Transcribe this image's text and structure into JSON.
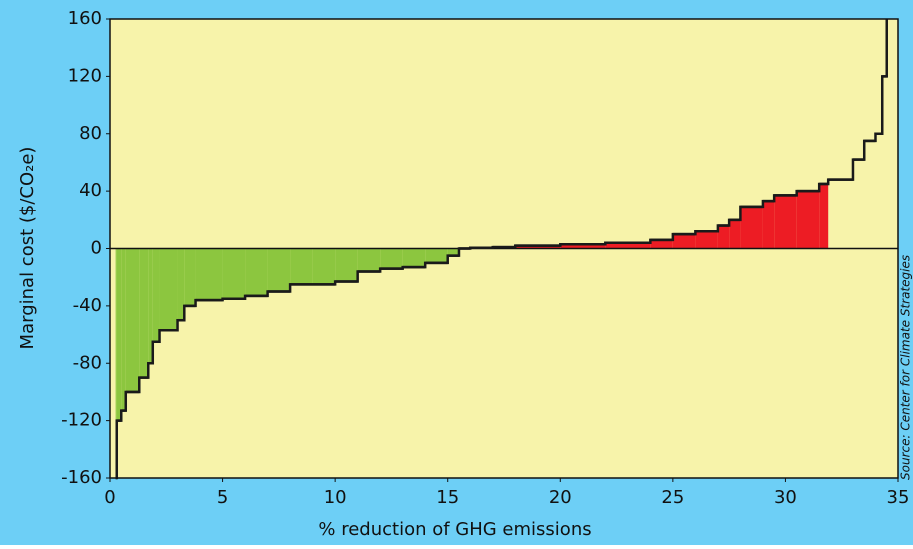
{
  "chart_data": {
    "type": "step",
    "ylabel": "Marginal cost ($/CO₂e)",
    "xlabel": "% reduction of GHG emissions",
    "source": "Source: Center for Climate Strategies",
    "x": [
      0.25,
      0.3,
      0.5,
      0.7,
      1.3,
      1.7,
      1.9,
      2.2,
      3.0,
      3.3,
      3.8,
      5,
      6,
      7,
      8,
      9,
      10,
      11,
      12,
      13,
      14,
      15,
      15.5,
      16,
      17,
      18,
      20,
      22,
      24,
      25,
      26,
      27,
      27.5,
      28,
      29,
      29.5,
      30.5,
      31.5,
      31.9,
      33,
      33.5,
      34,
      34.3,
      34.5
    ],
    "values": [
      -160,
      -120,
      -113,
      -100,
      -90,
      -80,
      -65,
      -57,
      -50,
      -40,
      -36,
      -35,
      -33,
      -30,
      -25,
      -25,
      -23,
      -16,
      -14,
      -13,
      -10,
      -5,
      0,
      0.5,
      1,
      2,
      3,
      4,
      6,
      10,
      12,
      16,
      20,
      29,
      33,
      37,
      40,
      45,
      48,
      62,
      75,
      80,
      120,
      160
    ],
    "line_color": "#1a1a1a",
    "negative_fill": "#8cc63f",
    "positive_fill": {
      "color": "#ed1c24",
      "xlim": [
        18,
        31.9
      ]
    },
    "plot_color": "#f7f3aa",
    "background": "#6dcff6",
    "xlim": [
      0,
      35
    ],
    "xticks": [
      0,
      5,
      10,
      15,
      20,
      25,
      30,
      35
    ],
    "ylim": [
      -160,
      160
    ],
    "yticks": [
      -160,
      -120,
      -80,
      -40,
      0,
      40,
      80,
      120,
      160
    ]
  }
}
